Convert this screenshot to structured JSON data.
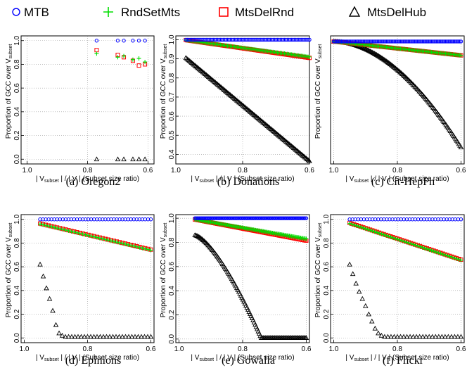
{
  "legend": [
    {
      "label": "MTB",
      "marker": "circle",
      "color": "#0000ff"
    },
    {
      "label": "RndSetMts",
      "marker": "plus",
      "color": "#00dd00"
    },
    {
      "label": "MtsDelRnd",
      "marker": "square",
      "color": "#ff0000"
    },
    {
      "label": "MtsDelHub",
      "marker": "triangle",
      "color": "#000000"
    }
  ],
  "axis_text": {
    "ylabel_main": "Proportion of GCC over V",
    "ylabel_sub": "subset",
    "xlabel_pre": "| V",
    "xlabel_sub": "subset",
    "xlabel_post": " | / | V | (Subset size ratio)"
  },
  "chart_data": [
    {
      "type": "scatter",
      "caption": "(a) Oregon2",
      "xlim": [
        1.02,
        0.58
      ],
      "ylim": [
        -0.04,
        1.04
      ],
      "xticks": [
        "1.0",
        "0.8",
        "0.6"
      ],
      "yticks": [
        "0.0",
        "0.2",
        "0.4",
        "0.6",
        "0.8",
        "1.0"
      ],
      "grid": true,
      "series": [
        {
          "name": "MTB",
          "x": [
            0.77,
            0.7,
            0.68,
            0.65,
            0.63,
            0.61
          ],
          "y": [
            1.0,
            1.0,
            1.0,
            1.0,
            1.0,
            1.0
          ]
        },
        {
          "name": "RndSetMts",
          "x": [
            0.77,
            0.7,
            0.68,
            0.65,
            0.63,
            0.61
          ],
          "y": [
            0.89,
            0.86,
            0.87,
            0.84,
            0.85,
            0.82
          ]
        },
        {
          "name": "MtsDelRnd",
          "x": [
            0.77,
            0.7,
            0.68,
            0.65,
            0.63,
            0.61
          ],
          "y": [
            0.92,
            0.88,
            0.86,
            0.83,
            0.79,
            0.8
          ]
        },
        {
          "name": "MtsDelHub",
          "x": [
            0.77,
            0.7,
            0.68,
            0.65,
            0.63,
            0.61
          ],
          "y": [
            0.0,
            0.0,
            0.0,
            0.0,
            0.0,
            0.0
          ]
        }
      ]
    },
    {
      "type": "scatter",
      "caption": "(b) Donations",
      "xlim": [
        1.0,
        0.6
      ],
      "ylim": [
        0.35,
        1.02
      ],
      "xticks": [
        "1.0",
        "0.8",
        "0.6"
      ],
      "yticks": [
        "0.4",
        "0.5",
        "0.6",
        "0.7",
        "0.8",
        "0.9",
        "1.0"
      ],
      "grid": true,
      "series": [
        {
          "name": "MTB",
          "range": [
            0.97,
            0.6,
            90
          ],
          "y_start": 1.0,
          "y_end": 1.0
        },
        {
          "name": "RndSetMts",
          "range": [
            0.97,
            0.6,
            90
          ],
          "y_start": 0.998,
          "y_end": 0.91
        },
        {
          "name": "MtsDelRnd",
          "range": [
            0.97,
            0.6,
            90
          ],
          "y_start": 0.998,
          "y_end": 0.905
        },
        {
          "name": "MtsDelHub",
          "range": [
            0.97,
            0.6,
            110
          ],
          "y_start": 0.905,
          "y_end": 0.365
        }
      ]
    },
    {
      "type": "scatter",
      "caption": "(c) Cit-HepPh",
      "xlim": [
        1.01,
        0.59
      ],
      "ylim": [
        0.78,
        1.01
      ],
      "xticks": [
        "1.0",
        "0.8",
        "0.6"
      ],
      "yticks": [],
      "grid": true,
      "series": [
        {
          "name": "MTB",
          "range": [
            1.0,
            0.6,
            100
          ],
          "y_start": 1.0,
          "y_end": 1.0
        },
        {
          "name": "RndSetMts",
          "range": [
            1.0,
            0.6,
            100
          ],
          "y_start": 1.0,
          "y_end": 0.975
        },
        {
          "name": "MtsDelRnd",
          "range": [
            1.0,
            0.6,
            100
          ],
          "y_start": 1.0,
          "y_end": 0.975
        },
        {
          "name": "MtsDelHub",
          "range": [
            1.0,
            0.6,
            120
          ],
          "y_start": 1.0,
          "y_end": 0.81,
          "shape": "convex"
        }
      ]
    },
    {
      "type": "scatter",
      "caption": "(d) Epinions",
      "xlim": [
        1.01,
        0.59
      ],
      "ylim": [
        -0.04,
        1.04
      ],
      "xticks": [
        "1.0",
        "0.8",
        "0.6"
      ],
      "yticks": [
        "0.0",
        "0.2",
        "0.4",
        "0.6",
        "0.8",
        "1.0"
      ],
      "grid": true,
      "series": [
        {
          "name": "MTB",
          "range": [
            0.95,
            0.6,
            40
          ],
          "y_start": 1.0,
          "y_end": 1.0
        },
        {
          "name": "RndSetMts",
          "range": [
            0.95,
            0.6,
            40
          ],
          "y_start": 0.96,
          "y_end": 0.74
        },
        {
          "name": "MtsDelRnd",
          "range": [
            0.95,
            0.6,
            40
          ],
          "y_start": 0.965,
          "y_end": 0.745
        },
        {
          "name": "MtsDelHub",
          "x": [
            0.95,
            0.94,
            0.93,
            0.92,
            0.91,
            0.9,
            0.89,
            0.88,
            0.87,
            0.86,
            0.85,
            0.84,
            0.83,
            0.82,
            0.81,
            0.8,
            0.79,
            0.78,
            0.77,
            0.76,
            0.75,
            0.74,
            0.73,
            0.72,
            0.71,
            0.7,
            0.69,
            0.68,
            0.67,
            0.66,
            0.65,
            0.64,
            0.63,
            0.62,
            0.61,
            0.6
          ],
          "y": [
            0.62,
            0.52,
            0.42,
            0.33,
            0.23,
            0.11,
            0.04,
            0.02,
            0.01,
            0.01,
            0.01,
            0.01,
            0.01,
            0.01,
            0.01,
            0.01,
            0.01,
            0.01,
            0.01,
            0.01,
            0.01,
            0.01,
            0.01,
            0.01,
            0.01,
            0.01,
            0.01,
            0.01,
            0.01,
            0.01,
            0.01,
            0.01,
            0.01,
            0.01,
            0.01,
            0.01
          ]
        }
      ]
    },
    {
      "type": "scatter",
      "caption": "(e) Gowalla",
      "xlim": [
        1.01,
        0.59
      ],
      "ylim": [
        -0.03,
        1.03
      ],
      "xticks": [
        "1.0",
        "0.8",
        "0.6"
      ],
      "yticks": [
        "0.0",
        "0.2",
        "0.4",
        "0.6",
        "0.8",
        "1.0"
      ],
      "grid": true,
      "series": [
        {
          "name": "MTB",
          "range": [
            0.95,
            0.6,
            100
          ],
          "y_start": 1.0,
          "y_end": 1.0
        },
        {
          "name": "RndSetMts",
          "range": [
            0.95,
            0.6,
            100
          ],
          "y_start": 0.99,
          "y_end": 0.83
        },
        {
          "name": "MtsDelRnd",
          "range": [
            0.95,
            0.6,
            100
          ],
          "y_start": 0.99,
          "y_end": 0.815
        },
        {
          "name": "MtsDelHub",
          "range": [
            0.95,
            0.6,
            110
          ],
          "y_start": 0.86,
          "y_end": 0.0,
          "shape": "gowalla"
        }
      ]
    },
    {
      "type": "scatter",
      "caption": "(f) Flickr",
      "xlim": [
        1.01,
        0.59
      ],
      "ylim": [
        -0.04,
        1.04
      ],
      "xticks": [
        "1.0",
        "0.8",
        "0.6"
      ],
      "yticks": [
        "0.0",
        "0.2",
        "0.4",
        "0.6",
        "0.8",
        "1.0"
      ],
      "grid": true,
      "series": [
        {
          "name": "MTB",
          "range": [
            0.95,
            0.6,
            40
          ],
          "y_start": 1.0,
          "y_end": 1.0
        },
        {
          "name": "RndSetMts",
          "range": [
            0.95,
            0.6,
            50
          ],
          "y_start": 0.965,
          "y_end": 0.655
        },
        {
          "name": "MtsDelRnd",
          "range": [
            0.95,
            0.6,
            50
          ],
          "y_start": 0.97,
          "y_end": 0.66
        },
        {
          "name": "MtsDelHub",
          "x": [
            0.95,
            0.94,
            0.93,
            0.92,
            0.91,
            0.9,
            0.89,
            0.88,
            0.87,
            0.86,
            0.85,
            0.84,
            0.83,
            0.82,
            0.81,
            0.8,
            0.79,
            0.78,
            0.77,
            0.76,
            0.75,
            0.74,
            0.73,
            0.72,
            0.71,
            0.7,
            0.69,
            0.68,
            0.67,
            0.66,
            0.65,
            0.64,
            0.63,
            0.62,
            0.61,
            0.6
          ],
          "y": [
            0.62,
            0.54,
            0.46,
            0.39,
            0.33,
            0.27,
            0.2,
            0.14,
            0.08,
            0.04,
            0.02,
            0.01,
            0.01,
            0.01,
            0.01,
            0.01,
            0.01,
            0.01,
            0.01,
            0.01,
            0.01,
            0.01,
            0.01,
            0.01,
            0.01,
            0.01,
            0.01,
            0.01,
            0.01,
            0.01,
            0.01,
            0.01,
            0.01,
            0.01,
            0.01,
            0.01
          ]
        }
      ]
    }
  ]
}
